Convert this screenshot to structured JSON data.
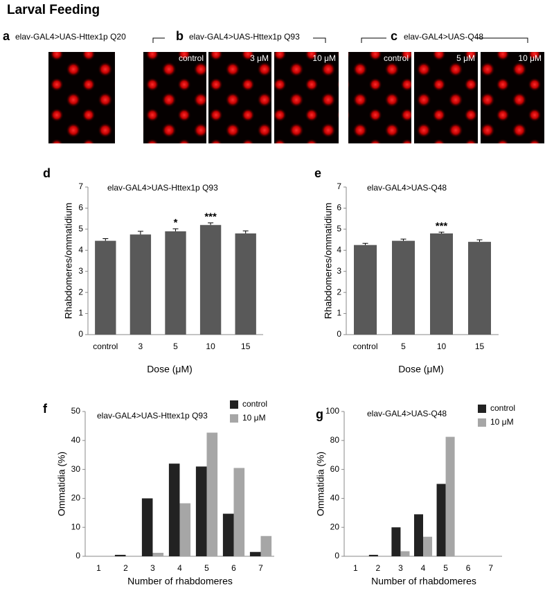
{
  "title": "Larval Feeding",
  "image_panels": [
    {
      "letter": "a",
      "label": "elav-GAL4>UAS-Httex1p Q20"
    },
    {
      "letter": "b",
      "label": "elav-GAL4>UAS-Httex1p Q93",
      "images": [
        "control",
        "3 μM",
        "10 μM"
      ]
    },
    {
      "letter": "c",
      "label": "elav-GAL4>UAS-Q48",
      "images": [
        "control",
        "5 μM",
        "10 μM"
      ]
    }
  ],
  "chart_data": [
    {
      "type": "bar",
      "panel": "d",
      "title": "elav-GAL4>UAS-Httex1p Q93",
      "x_label": "Dose (μM)",
      "y_label": "Rhabdomeres/ommatidium",
      "categories": [
        "control",
        "3",
        "5",
        "10",
        "15"
      ],
      "series": [
        {
          "color": "#595959",
          "values": [
            4.45,
            4.75,
            4.9,
            5.2,
            4.8
          ],
          "errors": [
            0.1,
            0.15,
            0.12,
            0.1,
            0.12
          ]
        }
      ],
      "significance": [
        null,
        null,
        "*",
        "***",
        null
      ],
      "ylim": [
        0,
        7
      ],
      "yticks": [
        0,
        1,
        2,
        3,
        4,
        5,
        6,
        7
      ]
    },
    {
      "type": "bar",
      "panel": "e",
      "title": "elav-GAL4>UAS-Q48",
      "x_label": "Dose (μM)",
      "y_label": "Rhabdomeres/ommatidium",
      "categories": [
        "control",
        "5",
        "10",
        "15"
      ],
      "series": [
        {
          "color": "#595959",
          "values": [
            4.25,
            4.45,
            4.8,
            4.4
          ],
          "errors": [
            0.08,
            0.08,
            0.06,
            0.1
          ]
        }
      ],
      "significance": [
        null,
        null,
        "***",
        null
      ],
      "ylim": [
        0,
        7
      ],
      "yticks": [
        0,
        1,
        2,
        3,
        4,
        5,
        6,
        7
      ]
    },
    {
      "type": "bar",
      "panel": "f",
      "title": "elav-GAL4>UAS-Httex1p Q93",
      "x_label": "Number of rhabdomeres",
      "y_label": "Ommatidia  (%)",
      "categories": [
        "1",
        "2",
        "3",
        "4",
        "5",
        "6",
        "7"
      ],
      "series": [
        {
          "name": "control",
          "color": "#222222",
          "values": [
            0,
            0.5,
            20,
            32,
            31,
            14.7,
            1.5
          ]
        },
        {
          "name": "10 μM",
          "color": "#a6a6a6",
          "values": [
            0,
            0,
            1.2,
            18.3,
            42.7,
            30.5,
            7
          ]
        }
      ],
      "ylim": [
        0,
        50
      ],
      "yticks": [
        0,
        10,
        20,
        30,
        40,
        50
      ]
    },
    {
      "type": "bar",
      "panel": "g",
      "title": "elav-GAL4>UAS-Q48",
      "x_label": "Number of rhabdomeres",
      "y_label": "Ommatidia  (%)",
      "categories": [
        "1",
        "2",
        "3",
        "4",
        "5",
        "6",
        "7"
      ],
      "series": [
        {
          "name": "control",
          "color": "#222222",
          "values": [
            0,
            1,
            20,
            29,
            50,
            0,
            0
          ]
        },
        {
          "name": "10 μM",
          "color": "#a6a6a6",
          "values": [
            0,
            0,
            3.5,
            13.5,
            82.5,
            0,
            0
          ]
        }
      ],
      "ylim": [
        0,
        100
      ],
      "yticks": [
        0,
        20,
        40,
        60,
        80,
        100
      ]
    }
  ]
}
